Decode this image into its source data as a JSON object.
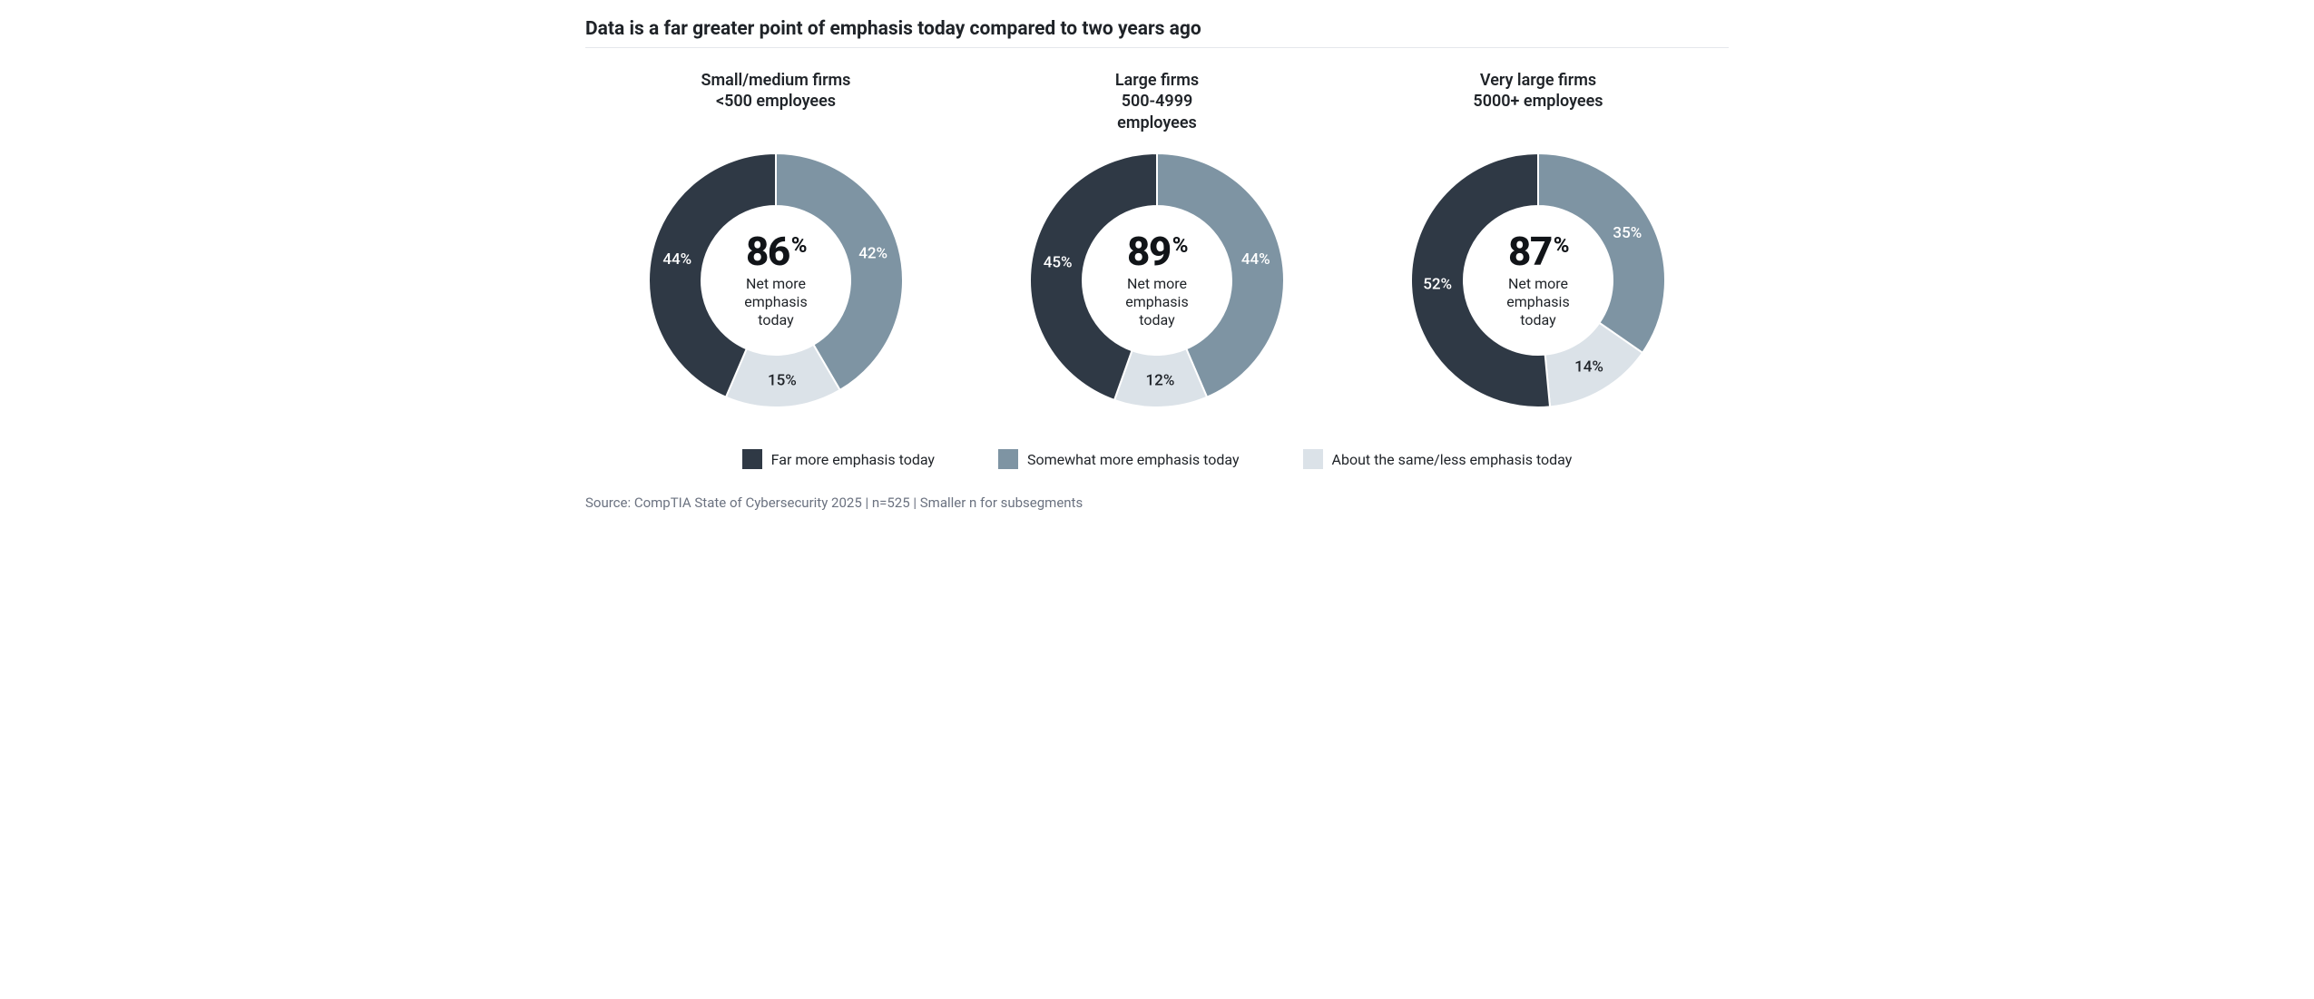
{
  "title": "Data is a far greater point of emphasis today compared to two years ago",
  "rule_color": "#e5e7eb",
  "background_color": "#ffffff",
  "donut": {
    "type": "donut",
    "outer_radius": 140,
    "inner_radius": 82,
    "gap_color": "#ffffff",
    "gap_width": 2,
    "start_angle_deg": 0,
    "label_radius": 111,
    "center_label_suffix": "%",
    "center_sub_text": "Net more\nemphasis\ntoday"
  },
  "series_colors": {
    "far_more": "#2f3945",
    "somewhat_more": "#7e94a3",
    "same_less": "#dbe2e8"
  },
  "label_text_colors": {
    "far_more": "#ffffff",
    "somewhat_more": "#ffffff",
    "same_less": "#1f2328"
  },
  "panels": [
    {
      "id": "small-medium",
      "title": "Small/medium firms\n<500 employees",
      "center_value": 86,
      "slices": [
        {
          "key": "somewhat_more",
          "value": 42,
          "label": "42%"
        },
        {
          "key": "same_less",
          "value": 15,
          "label": "15%"
        },
        {
          "key": "far_more",
          "value": 44,
          "label": "44%"
        }
      ]
    },
    {
      "id": "large",
      "title": "Large firms\n500-4999\nemployees",
      "center_value": 89,
      "slices": [
        {
          "key": "somewhat_more",
          "value": 44,
          "label": "44%"
        },
        {
          "key": "same_less",
          "value": 12,
          "label": "12%"
        },
        {
          "key": "far_more",
          "value": 45,
          "label": "45%"
        }
      ]
    },
    {
      "id": "very-large",
      "title": "Very large firms\n5000+ employees",
      "center_value": 87,
      "slices": [
        {
          "key": "somewhat_more",
          "value": 35,
          "label": "35%"
        },
        {
          "key": "same_less",
          "value": 14,
          "label": "14%"
        },
        {
          "key": "far_more",
          "value": 52,
          "label": "52%"
        }
      ]
    }
  ],
  "legend": [
    {
      "key": "far_more",
      "label": "Far more emphasis today"
    },
    {
      "key": "somewhat_more",
      "label": "Somewhat more emphasis today"
    },
    {
      "key": "same_less",
      "label": "About the same/less emphasis today"
    }
  ],
  "source": "Source: CompTIA State of Cybersecurity 2025 | n=525 | Smaller n for subsegments"
}
